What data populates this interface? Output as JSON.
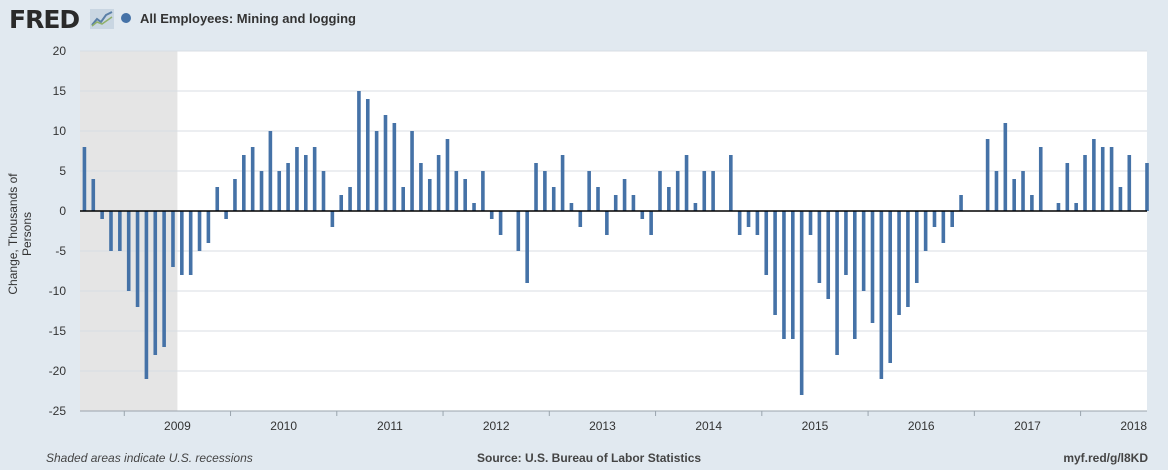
{
  "header": {
    "logo_text": "FRED",
    "logo_icon": "trend-line-icon",
    "series_color": "#4572a7",
    "series_title": "All Employees: Mining and logging"
  },
  "footer": {
    "recession_note": "Shaded areas indicate U.S. recessions",
    "source": "Source: U.S. Bureau of Labor Statistics",
    "short_url": "myf.red/g/l8KD"
  },
  "chart_data": {
    "type": "bar",
    "title": "All Employees: Mining and logging",
    "xlabel": "",
    "ylabel": "Change, Thousands of Persons",
    "ylim": [
      -25,
      20
    ],
    "yticks": [
      20,
      15,
      10,
      5,
      0,
      -5,
      -10,
      -15,
      -20,
      -25
    ],
    "grid": true,
    "bar_color": "#4572a7",
    "background_color": "#ffffff",
    "recession_color": "#e5e5e5",
    "start_date": "2008-08",
    "frequency": "monthly",
    "x_tick_labels": [
      "2009",
      "2010",
      "2011",
      "2012",
      "2013",
      "2014",
      "2015",
      "2016",
      "2017",
      "2018"
    ],
    "recessions": [
      {
        "start": "2008-08",
        "end": "2009-06"
      }
    ],
    "series": [
      {
        "name": "All Employees: Mining and logging",
        "values": [
          8,
          4,
          -1,
          -5,
          -5,
          -10,
          -12,
          -21,
          -18,
          -17,
          -7,
          -8,
          -8,
          -5,
          -4,
          3,
          -1,
          4,
          7,
          8,
          5,
          10,
          5,
          6,
          8,
          7,
          8,
          5,
          -2,
          2,
          3,
          15,
          14,
          10,
          12,
          11,
          3,
          10,
          6,
          4,
          7,
          9,
          5,
          4,
          1,
          5,
          -1,
          -3,
          0,
          -5,
          -9,
          6,
          5,
          3,
          7,
          1,
          -2,
          5,
          3,
          -3,
          2,
          4,
          2,
          -1,
          -3,
          5,
          3,
          5,
          7,
          1,
          5,
          5,
          0,
          7,
          -3,
          -2,
          -3,
          -8,
          -13,
          -16,
          -16,
          -23,
          -3,
          -9,
          -11,
          -18,
          -8,
          -16,
          -10,
          -14,
          -21,
          -19,
          -13,
          -12,
          -9,
          -5,
          -2,
          -4,
          -2,
          2,
          0,
          0,
          9,
          5,
          11,
          4,
          5,
          2,
          8,
          0,
          1,
          6,
          1,
          7,
          9,
          8,
          8,
          3,
          7,
          0,
          6
        ]
      }
    ]
  }
}
